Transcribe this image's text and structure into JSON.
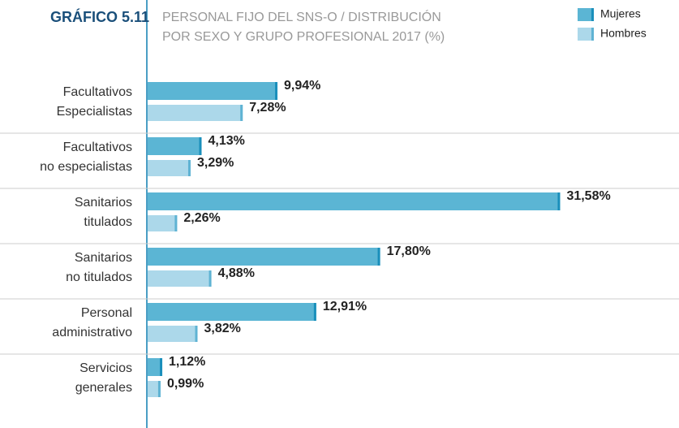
{
  "chart_data": {
    "type": "bar",
    "orientation": "horizontal",
    "title": "GRÁFICO 5.11",
    "subtitle": [
      "PERSONAL FIJO DEL SNS-O / DISTRIBUCIÓN",
      "POR SEXO Y GRUPO PROFESIONAL 2017 (%)"
    ],
    "categories": [
      [
        "Facultativos",
        "Especialistas"
      ],
      [
        "Facultativos",
        "no especialistas"
      ],
      [
        "Sanitarios",
        "titulados"
      ],
      [
        "Sanitarios",
        "no titulados"
      ],
      [
        "Personal",
        "administrativo"
      ],
      [
        "Servicios",
        "generales"
      ]
    ],
    "series": [
      {
        "name": "Mujeres",
        "color": "#5bb5d4",
        "edge": "#1a8fbb",
        "values": [
          9.94,
          4.13,
          31.58,
          17.8,
          12.91,
          1.12
        ],
        "value_labels": [
          "9,94%",
          "4,13%",
          "31,58%",
          "17,80%",
          "12,91%",
          "1,12%"
        ]
      },
      {
        "name": "Hombres",
        "color": "#acd8ea",
        "edge": "#5fb3d3",
        "values": [
          7.28,
          3.29,
          2.26,
          4.88,
          3.82,
          0.99
        ],
        "value_labels": [
          "7,28%",
          "3,29%",
          "2,26%",
          "4,88%",
          "3,82%",
          "0,99%"
        ]
      }
    ],
    "legend": "top-right"
  }
}
